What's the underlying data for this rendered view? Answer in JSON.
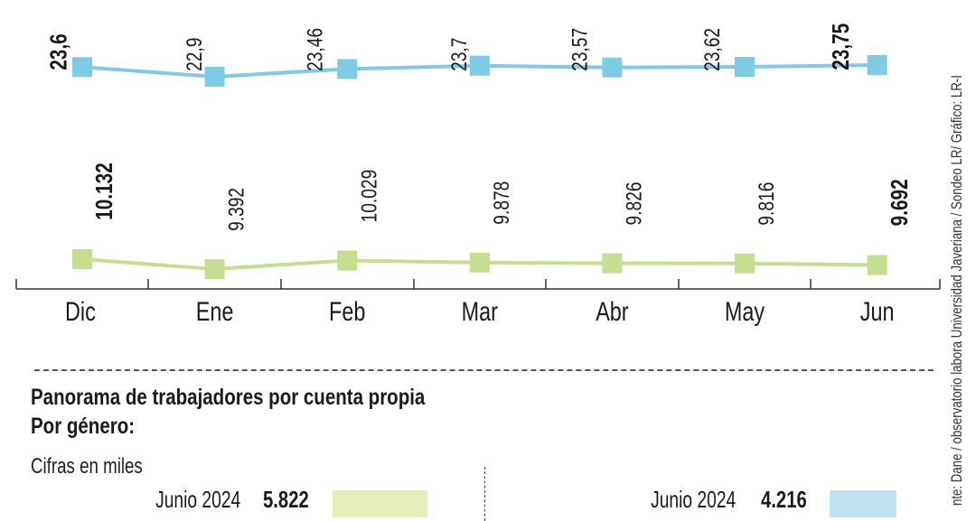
{
  "chart_data": {
    "type": "line",
    "categories": [
      "Dic",
      "Ene",
      "Feb",
      "Mar",
      "Abr",
      "May",
      "Jun"
    ],
    "series": [
      {
        "values": [
          23.6,
          22.9,
          23.46,
          23.7,
          23.57,
          23.62,
          23.75
        ],
        "labels": [
          "23,6",
          "22,9",
          "23,46",
          "23,7",
          "23,57",
          "23,62",
          "23,75"
        ],
        "color": "#7ecbe6",
        "bold_points": [
          0,
          6
        ]
      },
      {
        "values": [
          10132,
          9392,
          10029,
          9878,
          9826,
          9816,
          9692
        ],
        "labels": [
          "10.132",
          "9.392",
          "10.029",
          "9.878",
          "9.826",
          "9.816",
          "9.692"
        ],
        "color": "#c6de8f",
        "bold_points": [
          0,
          6
        ]
      }
    ]
  },
  "section": {
    "title": "Panorama de trabajadores por cuenta propia",
    "subtitle": "Por género:",
    "note": "Cifras en miles"
  },
  "gender_bars": [
    {
      "label": "Junio 2024",
      "value": "5.822",
      "color": "#e6ecba"
    },
    {
      "label": "Junio 2024",
      "value": "4.216",
      "color": "#bfe3f2"
    }
  ],
  "source": "nte: Dane / observatorio labora Universidad Javeriana / Sondeo LR/ Gráfico: LR-I"
}
